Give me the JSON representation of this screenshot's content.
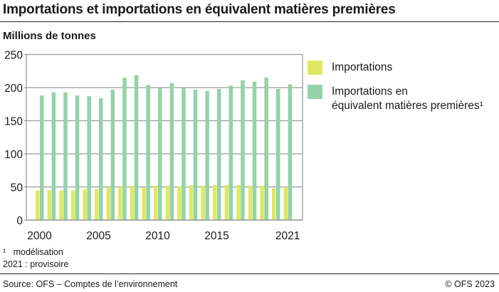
{
  "title": "Importations et importations en équivalent matières premières",
  "colors": {
    "importations": "#e0e862",
    "rme": "#93d3a9",
    "grid": "#9a9a9a"
  },
  "chart_data": {
    "type": "bar",
    "title": "Importations et importations en équivalent matières premières",
    "ylabel": "Millions de tonnes",
    "xlabel": "",
    "ylim": [
      0,
      250
    ],
    "yticks": [
      0,
      50,
      100,
      150,
      200,
      250
    ],
    "xtick_labels": [
      "2000",
      "2005",
      "2010",
      "2015",
      "2021"
    ],
    "grid": true,
    "legend_placement": "right",
    "categories": [
      2000,
      2001,
      2002,
      2003,
      2004,
      2005,
      2006,
      2007,
      2008,
      2009,
      2010,
      2011,
      2012,
      2013,
      2014,
      2015,
      2016,
      2017,
      2018,
      2019,
      2020,
      2021
    ],
    "series": [
      {
        "name": "Importations",
        "values": [
          45,
          45,
          45,
          45,
          47,
          47,
          50,
          50,
          52,
          49,
          52,
          52,
          51,
          53,
          52,
          53,
          53,
          53,
          52,
          52,
          48,
          50
        ]
      },
      {
        "name": "Importations en équivalent matières premières¹",
        "values": [
          188,
          193,
          193,
          188,
          187,
          184,
          197,
          215,
          219,
          204,
          199,
          207,
          200,
          197,
          195,
          198,
          203,
          211,
          209,
          215,
          198,
          205
        ]
      }
    ]
  },
  "legend": {
    "item1": "Importations",
    "item2_line1": "Importations en",
    "item2_line2": "équivalent matières premières¹"
  },
  "notes": {
    "note1_mark": "¹",
    "note1": "modélisation",
    "note2": "2021 : provisoire"
  },
  "footer": {
    "source": "Source: OFS – Comptes de l’environnement",
    "copyright": "© OFS 2023"
  }
}
